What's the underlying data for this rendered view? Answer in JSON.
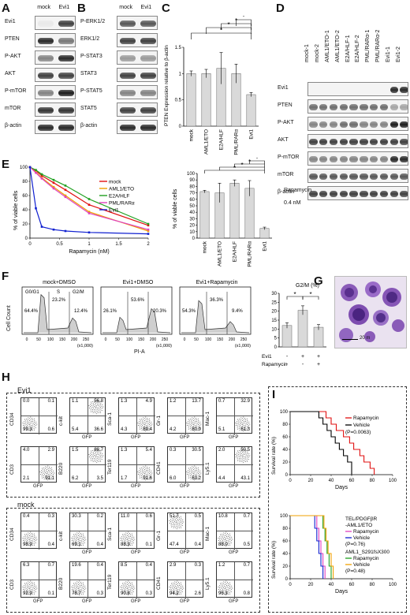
{
  "panels": {
    "A": {
      "label": "A",
      "cols": [
        "mock",
        "Evi1"
      ],
      "rows": [
        "Evi1",
        "PTEN",
        "P-AKT",
        "AKT",
        "P-mTOR",
        "mTOR",
        "β-actin"
      ]
    },
    "B": {
      "label": "B",
      "cols": [
        "mock",
        "Evi1"
      ],
      "rows": [
        "P-ERK1/2",
        "ERK1/2",
        "P-STAT3",
        "STAT3",
        "P-STAT5",
        "STAT5",
        "β-actin"
      ]
    },
    "C": {
      "label": "C",
      "ylabel": "PTEN Expression relative to β-actin",
      "sig": "*"
    },
    "D": {
      "label": "D",
      "cols": [
        "mock-1",
        "mock-2",
        "AML1/ETO-1",
        "AML1/ETO-2",
        "E2A/HLF-1",
        "E2A/HLF-2",
        "PML/RARα-1",
        "PML/RARα-2",
        "Evi1-1",
        "Evi1-2"
      ],
      "rows": [
        "Evi1",
        "PTEN",
        "P-AKT",
        "AKT",
        "P-mTOR",
        "mTOR",
        "β-actin"
      ]
    },
    "E": {
      "label": "E",
      "ylabel": "% of viable cells",
      "xlabel": "Rapamycin (nM)",
      "ylabel2": "% of viable cells",
      "note1": "Rapamycin",
      "note2": "0.4 nM"
    },
    "F": {
      "label": "F",
      "ylabel": "Cell Count",
      "xlabel": "PI-A",
      "x1000": "(x1,000)",
      "hists": [
        {
          "title": "mock+DMSO",
          "g0g1": "64.4%",
          "s": "23.2%",
          "g2m": "12.4%",
          "gl": "G0/G1",
          "sl": "S",
          "ml": "G2/M"
        },
        {
          "title": "Evi1+DMSO",
          "g0g1": "26.1%",
          "s": "53.6%",
          "g2m": "20.3%"
        },
        {
          "title": "Evi1+Rapamycin",
          "g0g1": "54.3%",
          "s": "36.3%",
          "g2m": "9.4%"
        }
      ],
      "bar_title": "G2/M (%)",
      "row_evi1": "Evi1",
      "row_rapa": "Rapamycin",
      "evi1_vals": [
        "-",
        "+",
        "+"
      ],
      "rapa_vals": [
        "-",
        "-",
        "+"
      ]
    },
    "G": {
      "label": "G",
      "scale": "20 m"
    },
    "H": {
      "label": "H",
      "group1": "Evi1",
      "group2": "mock",
      "xaxis": "GFP",
      "evi1_top": [
        {
          "y": "CD34",
          "q": [
            "0.0",
            "0.1",
            "99.3",
            "0.6"
          ]
        },
        {
          "y": "c-kit",
          "q": [
            "1.1",
            "56.8",
            "5.4",
            "36.6"
          ]
        },
        {
          "y": "Sca-1",
          "q": [
            "1.3",
            "4.9",
            "4.3",
            "89.4"
          ]
        },
        {
          "y": "Gr-1",
          "q": [
            "1.2",
            "13.7",
            "4.2",
            "80.9"
          ]
        },
        {
          "y": "Mac-1",
          "q": [
            "0.7",
            "32.9",
            "5.1",
            "61.3"
          ]
        }
      ],
      "evi1_bot": [
        {
          "y": "CD3",
          "q": [
            "4.0",
            "2.9",
            "2.1",
            "91.1"
          ]
        },
        {
          "y": "B220",
          "q": [
            "1.5",
            "88.7",
            "6.2",
            "3.5"
          ]
        },
        {
          "y": "Ter119",
          "q": [
            "1.3",
            "5.4",
            "1.7",
            "91.6"
          ]
        },
        {
          "y": "CD41",
          "q": [
            "0.3",
            "30.5",
            "6.0",
            "63.2"
          ]
        },
        {
          "y": "Ly5.1",
          "q": [
            "2.0",
            "50.5",
            "4.4",
            "43.1"
          ]
        }
      ],
      "mock_top": [
        {
          "y": "CD34",
          "q": [
            "0.4",
            "0.3",
            "98.9",
            "0.4"
          ]
        },
        {
          "y": "c-kit",
          "q": [
            "30.3",
            "0.2",
            "69.1",
            "0.4"
          ]
        },
        {
          "y": "Sca-1",
          "q": [
            "11.0",
            "0.6",
            "88.3",
            "0.1"
          ]
        },
        {
          "y": "Gr-1",
          "q": [
            "51.7",
            "0.5",
            "47.4",
            "0.4"
          ]
        },
        {
          "y": "Mac-1",
          "q": [
            "10.8",
            "0.7",
            "88.0",
            "0.5"
          ]
        }
      ],
      "mock_bot": [
        {
          "y": "CD3",
          "q": [
            "6.3",
            "0.7",
            "92.9",
            "0.1"
          ]
        },
        {
          "y": "B220",
          "q": [
            "19.6",
            "0.4",
            "78.7",
            "0.3"
          ]
        },
        {
          "y": "Ter119",
          "q": [
            "8.5",
            "0.4",
            "90.8",
            "0.3"
          ]
        },
        {
          "y": "CD41",
          "q": [
            "2.9",
            "0.3",
            "94.2",
            "2.6"
          ]
        },
        {
          "y": "Ly5.1",
          "q": [
            "1.2",
            "0.7",
            "96.3",
            "0.8"
          ]
        }
      ]
    },
    "I": {
      "label": "I",
      "ylabel": "Survival rate (%)",
      "xlabel": "Days",
      "top_legend": [
        "Rapamycin",
        "Vehicle",
        "(P=0.0063)"
      ],
      "bot_legend1": [
        "TEL/PDGFβR",
        "-AML1/ETO",
        "Rapamycin",
        "Vehicle",
        "(P=0.76)"
      ],
      "bot_legend2": [
        "AML1_S291fsX300",
        "Rapamycin",
        "Vehicle",
        "(P=0.48)"
      ]
    }
  },
  "colors": {
    "mock": "#e01010",
    "aml1eto": "#f0a000",
    "e2ahlf": "#20a020",
    "pmlrar": "#e040c0",
    "evi1": "#1020d0",
    "bar": "#d9d9d9"
  },
  "chart_data": [
    {
      "type": "bar",
      "title": "",
      "ylabel": "PTEN Expression relative to β-actin",
      "categories": [
        "mock",
        "AML1/ETO",
        "E2A/HLF",
        "PML/RARα",
        "Evi1"
      ],
      "values": [
        1.0,
        1.0,
        1.1,
        1.0,
        0.6
      ],
      "errors": [
        0.05,
        0.08,
        0.3,
        0.18,
        0.04
      ],
      "ylim": [
        0,
        1.5
      ],
      "yticks": [
        "0",
        "0.5",
        "1",
        "1.5"
      ]
    },
    {
      "type": "line",
      "xlabel": "Rapamycin (nM)",
      "ylabel": "% of viable cells",
      "x": [
        0,
        0.1,
        0.2,
        0.4,
        0.6,
        1,
        2
      ],
      "xticks": [
        "0",
        "0.5",
        "1",
        "1.5",
        "2"
      ],
      "yticks": [
        "0",
        "20",
        "40",
        "60",
        "80",
        "100"
      ],
      "xlim": [
        0,
        2
      ],
      "ylim": [
        0,
        100
      ],
      "series": [
        {
          "name": "mock",
          "values": [
            100,
            95,
            88,
            78,
            68,
            47,
            18
          ]
        },
        {
          "name": "AML1/ETO",
          "values": [
            100,
            93,
            85,
            72,
            60,
            37,
            10
          ]
        },
        {
          "name": "E2A/HLF",
          "values": [
            100,
            96,
            90,
            82,
            74,
            55,
            20
          ]
        },
        {
          "name": "PML/RARα",
          "values": [
            100,
            92,
            84,
            70,
            58,
            35,
            12
          ]
        },
        {
          "name": "Evi1",
          "values": [
            100,
            42,
            16,
            12,
            10,
            8,
            6
          ]
        }
      ]
    },
    {
      "type": "bar",
      "ylabel": "% of viable cells",
      "categories": [
        "mock",
        "AML1/ETO",
        "E2A/HLF",
        "PML/RARα",
        "Evi1"
      ],
      "values": [
        72,
        70,
        85,
        77,
        15
      ],
      "errors": [
        2,
        15,
        5,
        12,
        2
      ],
      "ylim": [
        0,
        100
      ],
      "yticks": [
        "0",
        "10",
        "20",
        "30",
        "40",
        "50",
        "60",
        "70",
        "80",
        "90",
        "100"
      ]
    },
    {
      "type": "bar",
      "title": "G2/M (%)",
      "categories": [
        "mock+DMSO",
        "Evi1+DMSO",
        "Evi1+Rapamycin"
      ],
      "values": [
        12,
        20.5,
        11
      ],
      "errors": [
        1.5,
        2.5,
        1.5
      ],
      "ylim": [
        0,
        30
      ],
      "yticks": [
        "0",
        "5",
        "10",
        "15",
        "20",
        "25",
        "30"
      ]
    },
    {
      "type": "line",
      "xlabel": "Days",
      "ylabel": "Survival rate (%)",
      "xlim": [
        0,
        100
      ],
      "ylim": [
        0,
        100
      ],
      "xticks": [
        "0",
        "20",
        "40",
        "60",
        "80",
        "100"
      ],
      "yticks": [
        "0",
        "20",
        "40",
        "60",
        "80",
        "100"
      ],
      "series": [
        {
          "name": "Rapamycin",
          "x": [
            0,
            30,
            35,
            40,
            45,
            52,
            58,
            62,
            68,
            72,
            78,
            82
          ],
          "values": [
            100,
            100,
            90,
            80,
            70,
            60,
            50,
            40,
            30,
            20,
            10,
            0
          ]
        },
        {
          "name": "Vehicle",
          "x": [
            0,
            25,
            28,
            32,
            36,
            40,
            44,
            48,
            52,
            56,
            60
          ],
          "values": [
            100,
            100,
            90,
            80,
            70,
            60,
            50,
            40,
            30,
            20,
            0
          ]
        }
      ]
    },
    {
      "type": "line",
      "xlabel": "Days",
      "ylabel": "Survival rate (%)",
      "xlim": [
        0,
        100
      ],
      "ylim": [
        0,
        100
      ],
      "xticks": [
        "0",
        "20",
        "40",
        "60",
        "80",
        "100"
      ],
      "yticks": [
        "0",
        "20",
        "40",
        "60",
        "80",
        "100"
      ],
      "series": [
        {
          "name": "TEL/PDGFβR-AML1/ETO Rapamycin",
          "x": [
            0,
            24,
            26,
            28,
            30,
            32,
            34
          ],
          "values": [
            100,
            100,
            80,
            60,
            40,
            20,
            0
          ]
        },
        {
          "name": "TEL/PDGFβR-AML1/ETO Vehicle",
          "x": [
            0,
            22,
            24,
            26,
            28,
            30,
            32
          ],
          "values": [
            100,
            100,
            80,
            60,
            40,
            20,
            0
          ]
        },
        {
          "name": "AML1_S291fsX300 Rapamycin",
          "x": [
            0,
            30,
            32,
            34,
            36,
            38,
            40
          ],
          "values": [
            100,
            100,
            80,
            60,
            40,
            20,
            0
          ]
        },
        {
          "name": "AML1_S291fsX300 Vehicle",
          "x": [
            0,
            30,
            33,
            35,
            37,
            40,
            42
          ],
          "values": [
            100,
            100,
            80,
            60,
            40,
            20,
            0
          ]
        }
      ]
    }
  ]
}
